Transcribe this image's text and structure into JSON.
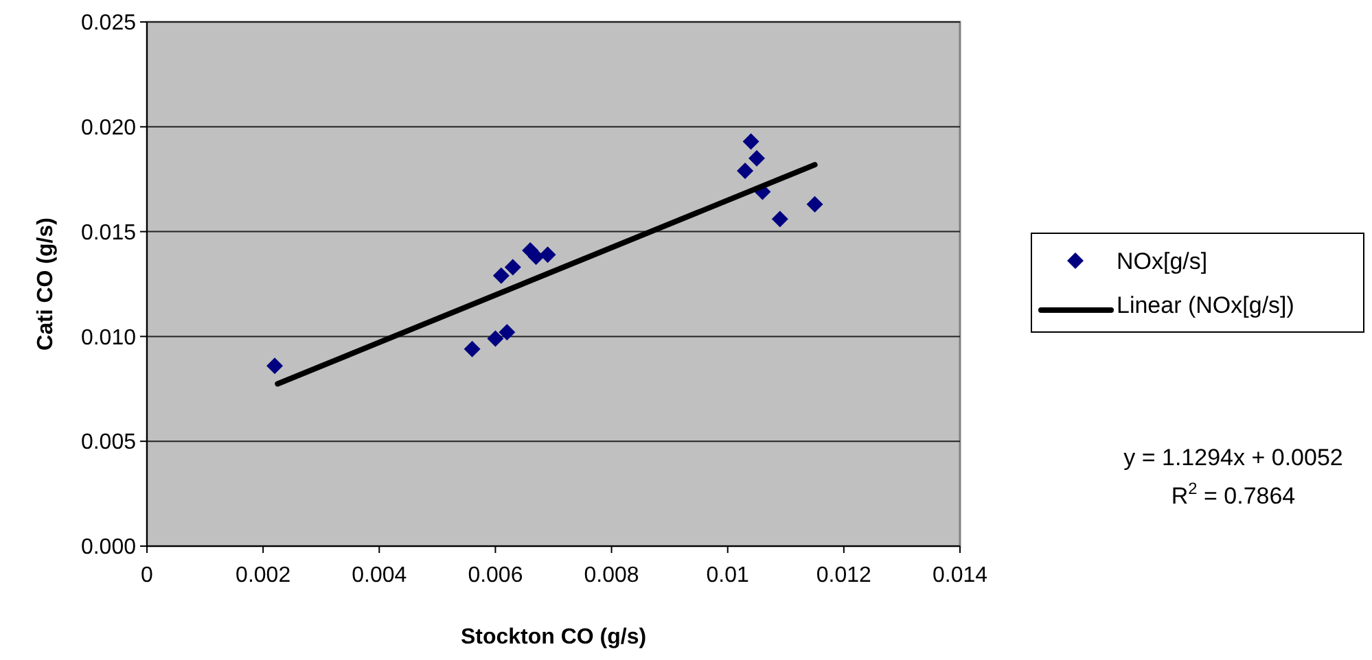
{
  "chart_data": {
    "type": "scatter",
    "xlabel": "Stockton CO (g/s)",
    "ylabel": "Cati CO (g/s)",
    "xlim": [
      0,
      0.014
    ],
    "xticks": [
      0,
      0.002,
      0.004,
      0.006,
      0.008,
      {
        "value": 0.01,
        "label": "0.01"
      },
      0.012,
      0.014
    ],
    "ylim": [
      0,
      0.025
    ],
    "yticks": [
      {
        "value": 0,
        "label": "0.000"
      },
      {
        "value": 0.005,
        "label": "0.005"
      },
      {
        "value": 0.01,
        "label": "0.010"
      },
      {
        "value": 0.015,
        "label": "0.015"
      },
      {
        "value": 0.02,
        "label": "0.020"
      },
      {
        "value": 0.025,
        "label": "0.025"
      }
    ],
    "grid": "y",
    "legend": "right",
    "marker": "diamond",
    "series": [
      {
        "name": "NOx[g/s]",
        "color": "#000080",
        "x": [
          0.0022,
          0.0056,
          0.006,
          0.0062,
          0.0061,
          0.0063,
          0.0066,
          0.0067,
          0.0069,
          0.0103,
          0.0104,
          0.0105,
          0.0106,
          0.0109,
          0.0115
        ],
        "values": [
          0.0086,
          0.0094,
          0.0099,
          0.0102,
          0.0129,
          0.0133,
          0.0141,
          0.0138,
          0.0139,
          0.0179,
          0.0193,
          0.0185,
          0.0169,
          0.0156,
          0.0163
        ]
      },
      {
        "name": "Linear (NOx[g/s])",
        "type": "line",
        "color": "#000000",
        "marker": "none",
        "x": [
          0.00225,
          0.0115
        ],
        "values": [
          0.00774,
          0.01819
        ]
      }
    ],
    "annotations": [
      "y = 1.1294x + 0.0052",
      "R$^{2}$ = 0.7864"
    ]
  }
}
